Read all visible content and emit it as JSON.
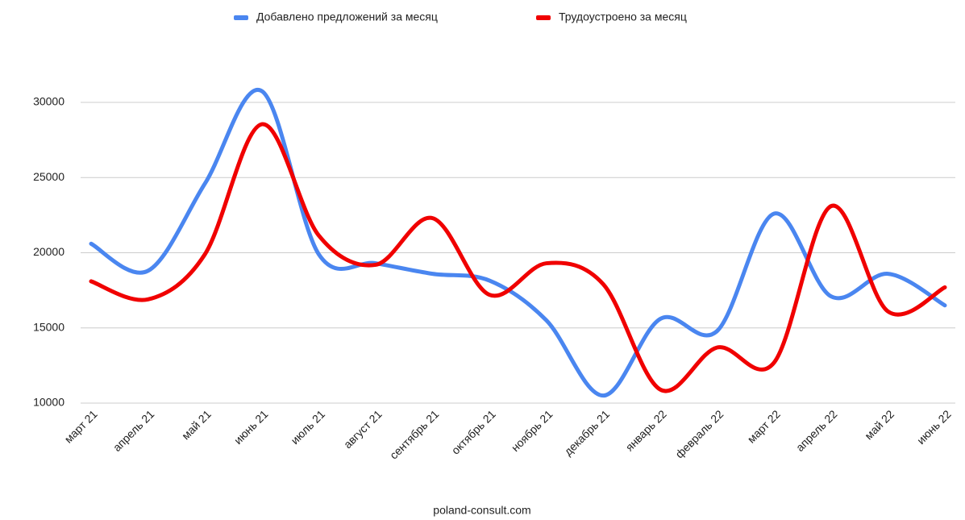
{
  "chart_data": {
    "type": "line",
    "categories": [
      "март 21",
      "апрель 21",
      "май 21",
      "июнь 21",
      "июль 21",
      "август 21",
      "сентябрь 21",
      "октябрь 21",
      "ноябрь 21",
      "декабрь 21",
      "январь 22",
      "февраль 22",
      "март 22",
      "апрель 22",
      "май 22",
      "июнь 22"
    ],
    "series": [
      {
        "name": "Добавлено предложений за месяц",
        "color": "#4a86f0",
        "values": [
          20600,
          18800,
          24600,
          30750,
          19900,
          19300,
          18600,
          18150,
          15500,
          10500,
          15600,
          14800,
          22600,
          17100,
          18600,
          16500
        ]
      },
      {
        "name": "Трудоустроено за месяц",
        "color": "#f00000",
        "values": [
          18100,
          16900,
          19900,
          28550,
          21150,
          19200,
          22300,
          17200,
          19300,
          17900,
          10900,
          13700,
          12700,
          23100,
          16100,
          17700
        ]
      }
    ],
    "ylim": [
      10000,
      30000
    ],
    "yticks": [
      10000,
      15000,
      20000,
      25000,
      30000
    ],
    "grid": true,
    "legend": "top",
    "footer": "poland-consult.com"
  }
}
